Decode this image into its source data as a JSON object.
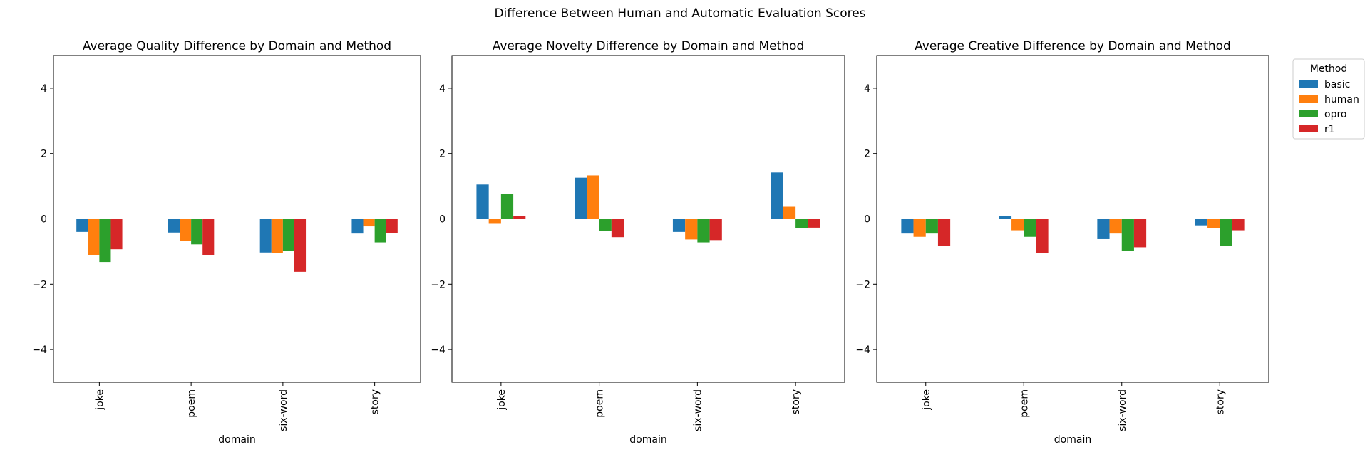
{
  "figure": {
    "suptitle": "Difference Between Human and Automatic Evaluation Scores"
  },
  "legend": {
    "title": "Method",
    "placement": "outside right",
    "entries": [
      "basic",
      "human",
      "opro",
      "r1"
    ]
  },
  "colors": {
    "basic": "#1f77b4",
    "human": "#ff7f0e",
    "opro": "#2ca02c",
    "r1": "#d62728"
  },
  "chart_data": [
    {
      "type": "bar",
      "title": "Average Quality Difference by Domain and Method",
      "xlabel": "domain",
      "ylabel": "",
      "ylim": [
        -5,
        5
      ],
      "yticks": [
        -4,
        -2,
        0,
        2,
        4
      ],
      "grid": false,
      "categories": [
        "joke",
        "poem",
        "six-word",
        "story"
      ],
      "series": [
        {
          "name": "basic",
          "values": [
            -0.4,
            -0.42,
            -1.03,
            -0.45
          ]
        },
        {
          "name": "human",
          "values": [
            -1.1,
            -0.67,
            -1.05,
            -0.23
          ]
        },
        {
          "name": "opro",
          "values": [
            -1.32,
            -0.78,
            -0.97,
            -0.72
          ]
        },
        {
          "name": "r1",
          "values": [
            -0.93,
            -1.1,
            -1.62,
            -0.43
          ]
        }
      ]
    },
    {
      "type": "bar",
      "title": "Average Novelty Difference by Domain and Method",
      "xlabel": "domain",
      "ylabel": "",
      "ylim": [
        -5,
        5
      ],
      "yticks": [
        -4,
        -2,
        0,
        2,
        4
      ],
      "grid": false,
      "categories": [
        "joke",
        "poem",
        "six-word",
        "story"
      ],
      "series": [
        {
          "name": "basic",
          "values": [
            1.05,
            1.26,
            -0.4,
            1.42
          ]
        },
        {
          "name": "human",
          "values": [
            -0.13,
            1.33,
            -0.63,
            0.37
          ]
        },
        {
          "name": "opro",
          "values": [
            0.77,
            -0.38,
            -0.72,
            -0.28
          ]
        },
        {
          "name": "r1",
          "values": [
            0.08,
            -0.56,
            -0.65,
            -0.27
          ]
        }
      ]
    },
    {
      "type": "bar",
      "title": "Average Creative Difference by Domain and Method",
      "xlabel": "domain",
      "ylabel": "",
      "ylim": [
        -5,
        5
      ],
      "yticks": [
        -4,
        -2,
        0,
        2,
        4
      ],
      "grid": false,
      "categories": [
        "joke",
        "poem",
        "six-word",
        "story"
      ],
      "series": [
        {
          "name": "basic",
          "values": [
            -0.45,
            0.08,
            -0.62,
            -0.2
          ]
        },
        {
          "name": "human",
          "values": [
            -0.55,
            -0.35,
            -0.45,
            -0.28
          ]
        },
        {
          "name": "opro",
          "values": [
            -0.45,
            -0.55,
            -0.98,
            -0.82
          ]
        },
        {
          "name": "r1",
          "values": [
            -0.83,
            -1.05,
            -0.87,
            -0.35
          ]
        }
      ]
    }
  ]
}
